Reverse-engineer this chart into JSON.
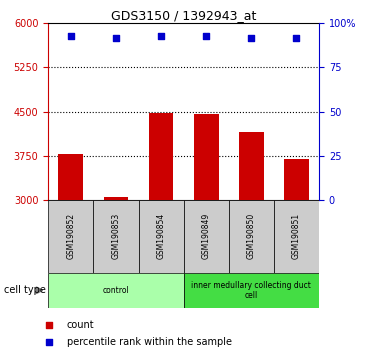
{
  "title": "GDS3150 / 1392943_at",
  "samples": [
    "GSM190852",
    "GSM190853",
    "GSM190854",
    "GSM190849",
    "GSM190850",
    "GSM190851"
  ],
  "counts": [
    3780,
    3055,
    4475,
    4455,
    4150,
    3700
  ],
  "percentiles": [
    92.5,
    91.5,
    92.8,
    92.8,
    91.8,
    91.5
  ],
  "cell_type_groups": [
    {
      "label": "control",
      "start": 0,
      "end": 2,
      "color": "#AAFFAA"
    },
    {
      "label": "inner medullary collecting duct\ncell",
      "start": 3,
      "end": 5,
      "color": "#44DD44"
    }
  ],
  "bar_color": "#CC0000",
  "scatter_color": "#0000CC",
  "ylim_left": [
    3000,
    6000
  ],
  "ylim_right": [
    0,
    100
  ],
  "yticks_left": [
    3000,
    3750,
    4500,
    5250,
    6000
  ],
  "yticks_right": [
    0,
    25,
    50,
    75,
    100
  ],
  "left_axis_color": "#CC0000",
  "right_axis_color": "#0000CC",
  "bg_color": "#FFFFFF",
  "grid_color": "#000000",
  "cell_type_label": "cell type",
  "legend_count_label": "count",
  "legend_percentile_label": "percentile rank within the sample",
  "sample_box_color": "#CCCCCC"
}
